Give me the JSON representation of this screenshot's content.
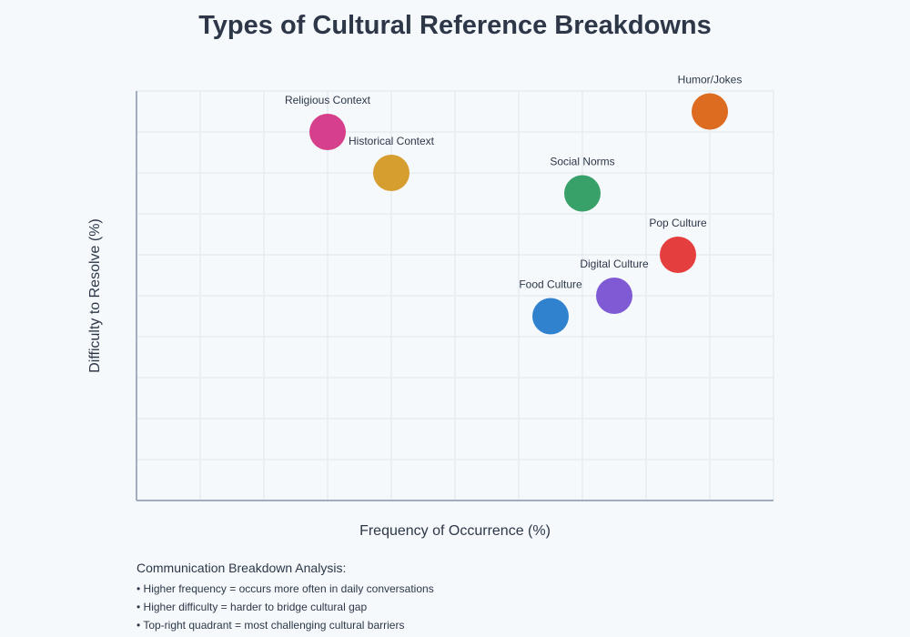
{
  "title": "Types of Cultural Reference Breakdowns",
  "chart_data": {
    "type": "scatter",
    "title": "Types of Cultural Reference Breakdowns",
    "xlabel": "Frequency of Occurrence (%)",
    "ylabel": "Difficulty to Resolve (%)",
    "xlim": [
      0,
      100
    ],
    "ylim": [
      0,
      100
    ],
    "grid": true,
    "points": [
      {
        "label": "Religious Context",
        "x": 30,
        "y": 90,
        "color": "#d53f8c"
      },
      {
        "label": "Historical Context",
        "x": 40,
        "y": 80,
        "color": "#d69e2e"
      },
      {
        "label": "Social Norms",
        "x": 70,
        "y": 75,
        "color": "#38a169"
      },
      {
        "label": "Humor/Jokes",
        "x": 90,
        "y": 95,
        "color": "#dd6b20"
      },
      {
        "label": "Pop Culture",
        "x": 85,
        "y": 60,
        "color": "#e53e3e"
      },
      {
        "label": "Digital Culture",
        "x": 75,
        "y": 50,
        "color": "#805ad5"
      },
      {
        "label": "Food Culture",
        "x": 65,
        "y": 45,
        "color": "#3182ce"
      }
    ]
  },
  "notes": {
    "heading": "Communication Breakdown Analysis:",
    "items": [
      "• Higher frequency = occurs more often in daily conversations",
      "• Higher difficulty = harder to bridge cultural gap",
      "• Top-right quadrant = most challenging cultural barriers"
    ]
  }
}
